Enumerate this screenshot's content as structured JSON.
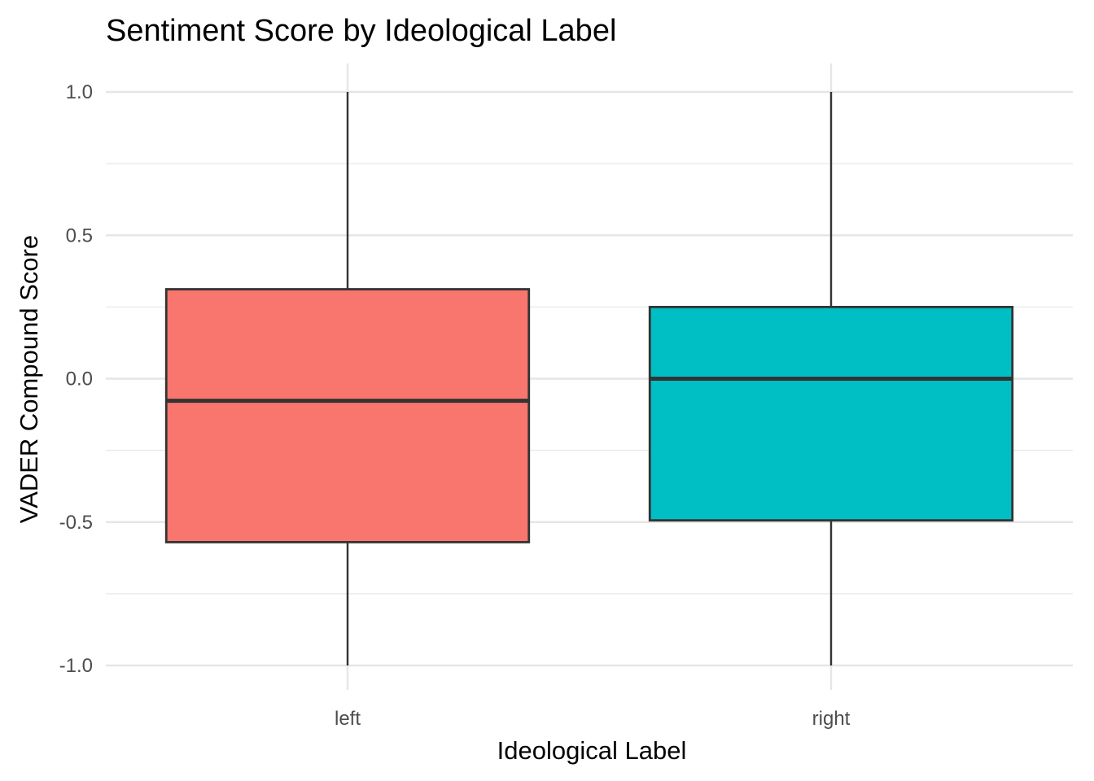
{
  "chart_data": {
    "type": "box",
    "title": "Sentiment Score by Ideological Label",
    "xlabel": "Ideological Label",
    "ylabel": "VADER Compound Score",
    "categories": [
      "left",
      "right"
    ],
    "ylim": [
      -1.08,
      1.1
    ],
    "yticks": [
      -1.0,
      -0.5,
      0.0,
      0.5,
      1.0
    ],
    "ytick_labels": [
      "-1.0",
      "-0.5",
      "0.0",
      "0.5",
      "1.0"
    ],
    "grid": true,
    "legend": "none",
    "boxes": [
      {
        "category": "left",
        "min": -1.0,
        "q1": -0.57,
        "median": -0.077,
        "q3": 0.312,
        "max": 1.0,
        "color": "#F8766D"
      },
      {
        "category": "right",
        "min": -1.0,
        "q1": -0.494,
        "median": 0.0,
        "q3": 0.25,
        "max": 1.0,
        "color": "#00BFC4"
      }
    ]
  }
}
